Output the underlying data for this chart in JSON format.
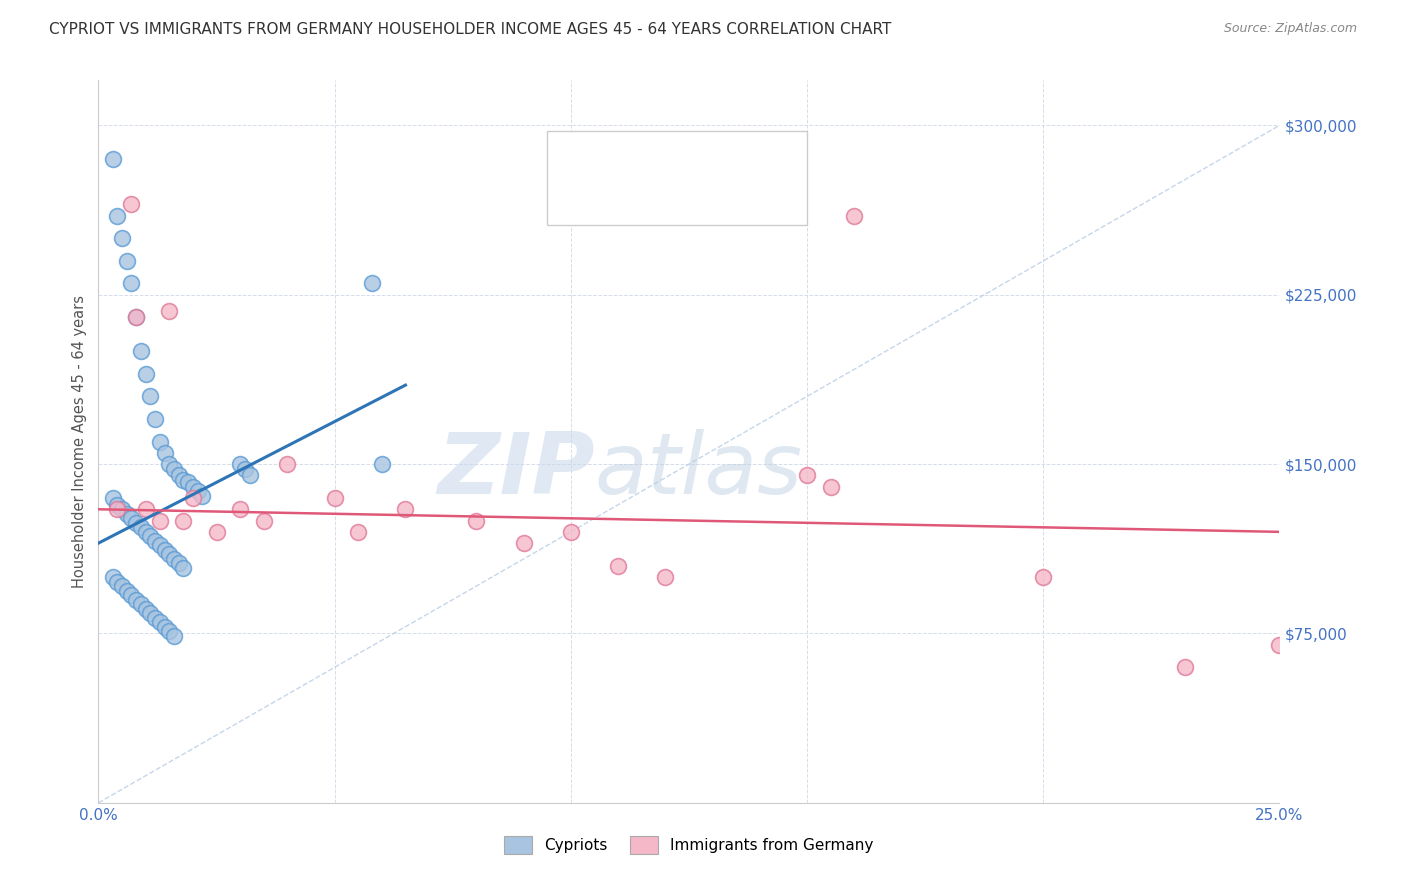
{
  "title": "CYPRIOT VS IMMIGRANTS FROM GERMANY HOUSEHOLDER INCOME AGES 45 - 64 YEARS CORRELATION CHART",
  "source": "Source: ZipAtlas.com",
  "ylabel": "Householder Income Ages 45 - 64 years",
  "xlim": [
    0.0,
    0.25
  ],
  "ylim": [
    0,
    320000
  ],
  "yticks": [
    0,
    75000,
    150000,
    225000,
    300000
  ],
  "ytick_labels": [
    "",
    "$75,000",
    "$150,000",
    "$225,000",
    "$300,000"
  ],
  "xticks": [
    0.0,
    0.05,
    0.1,
    0.15,
    0.2,
    0.25
  ],
  "xtick_labels": [
    "0.0%",
    "",
    "",
    "",
    "",
    "25.0%"
  ],
  "cypriot_color": "#a8c4e0",
  "cypriot_edge_color": "#5b9bd5",
  "cypriot_line_color": "#2e75b6",
  "immigrant_color": "#f4b8c8",
  "immigrant_edge_color": "#e07898",
  "immigrant_line_color": "#e05878",
  "diag_color": "#b8cce4",
  "background_color": "#ffffff",
  "cypriot_x": [
    0.003,
    0.004,
    0.005,
    0.006,
    0.007,
    0.008,
    0.009,
    0.01,
    0.011,
    0.012,
    0.013,
    0.014,
    0.015,
    0.016,
    0.017,
    0.018,
    0.019,
    0.02,
    0.021,
    0.022,
    0.003,
    0.004,
    0.005,
    0.006,
    0.007,
    0.008,
    0.009,
    0.01,
    0.011,
    0.012,
    0.013,
    0.014,
    0.015,
    0.016,
    0.017,
    0.018,
    0.003,
    0.004,
    0.005,
    0.006,
    0.007,
    0.008,
    0.009,
    0.01,
    0.011,
    0.012,
    0.013,
    0.014,
    0.015,
    0.016,
    0.03,
    0.031,
    0.032,
    0.058,
    0.06
  ],
  "cypriot_y": [
    285000,
    260000,
    250000,
    240000,
    230000,
    215000,
    200000,
    190000,
    180000,
    170000,
    160000,
    155000,
    150000,
    148000,
    145000,
    143000,
    142000,
    140000,
    138000,
    136000,
    135000,
    132000,
    130000,
    128000,
    126000,
    124000,
    122000,
    120000,
    118000,
    116000,
    114000,
    112000,
    110000,
    108000,
    106000,
    104000,
    100000,
    98000,
    96000,
    94000,
    92000,
    90000,
    88000,
    86000,
    84000,
    82000,
    80000,
    78000,
    76000,
    74000,
    150000,
    148000,
    145000,
    230000,
    150000
  ],
  "immigrant_x": [
    0.004,
    0.007,
    0.008,
    0.01,
    0.013,
    0.015,
    0.018,
    0.02,
    0.025,
    0.03,
    0.035,
    0.04,
    0.05,
    0.055,
    0.065,
    0.08,
    0.09,
    0.1,
    0.11,
    0.12,
    0.15,
    0.155,
    0.16,
    0.2,
    0.23,
    0.25
  ],
  "immigrant_y": [
    130000,
    265000,
    215000,
    130000,
    125000,
    218000,
    125000,
    135000,
    120000,
    130000,
    125000,
    150000,
    135000,
    120000,
    130000,
    125000,
    115000,
    120000,
    105000,
    100000,
    145000,
    140000,
    260000,
    100000,
    60000,
    70000
  ],
  "cypriot_trend_x": [
    0.0,
    0.065
  ],
  "cypriot_trend_y": [
    115000,
    185000
  ],
  "immigrant_trend_x": [
    0.0,
    0.25
  ],
  "immigrant_trend_y": [
    130000,
    120000
  ]
}
